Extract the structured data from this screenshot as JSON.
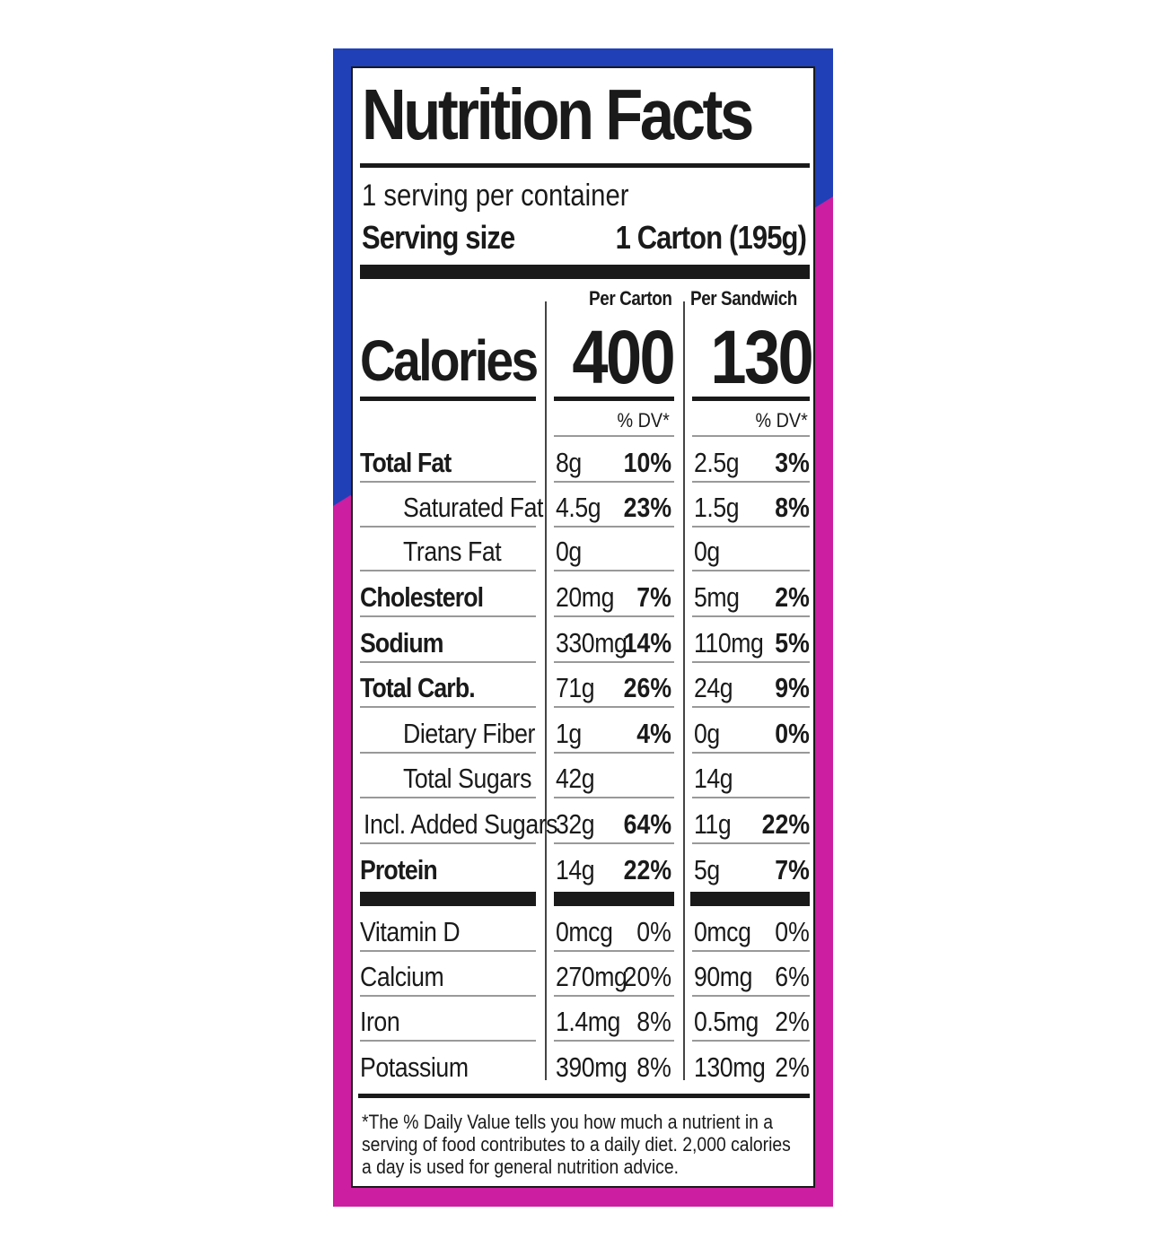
{
  "colors": {
    "blue": "#2040b8",
    "magenta": "#cc1ea0",
    "ink": "#1a1a1a"
  },
  "label": {
    "title": "Nutrition Facts",
    "servings_per_container": "1 serving per container",
    "serving_size_label": "Serving size",
    "serving_size_value": "1 Carton (195g)",
    "col1_header": "Per Carton",
    "col2_header": "Per Sandwich",
    "calories_label": "Calories",
    "calories_col1": "400",
    "calories_col2": "130",
    "dv_header": "% DV*",
    "nutrients": [
      {
        "name": "Total Fat",
        "bold": true,
        "indent": false,
        "c1_amt": "8g",
        "c1_dv": "10%",
        "c2_amt": "2.5g",
        "c2_dv": "3%"
      },
      {
        "name": "Saturated Fat",
        "bold": false,
        "indent": true,
        "c1_amt": "4.5g",
        "c1_dv": "23%",
        "c2_amt": "1.5g",
        "c2_dv": "8%"
      },
      {
        "name": "Trans Fat",
        "bold": false,
        "indent": true,
        "c1_amt": "0g",
        "c1_dv": "",
        "c2_amt": "0g",
        "c2_dv": ""
      },
      {
        "name": "Cholesterol",
        "bold": true,
        "indent": false,
        "c1_amt": "20mg",
        "c1_dv": "7%",
        "c2_amt": "5mg",
        "c2_dv": "2%"
      },
      {
        "name": "Sodium",
        "bold": true,
        "indent": false,
        "c1_amt": "330mg",
        "c1_dv": "14%",
        "c2_amt": "110mg",
        "c2_dv": "5%"
      },
      {
        "name": "Total Carb.",
        "bold": true,
        "indent": false,
        "c1_amt": "71g",
        "c1_dv": "26%",
        "c2_amt": "24g",
        "c2_dv": "9%"
      },
      {
        "name": "Dietary Fiber",
        "bold": false,
        "indent": true,
        "c1_amt": "1g",
        "c1_dv": "4%",
        "c2_amt": "0g",
        "c2_dv": "0%"
      },
      {
        "name": "Total Sugars",
        "bold": false,
        "indent": true,
        "c1_amt": "42g",
        "c1_dv": "",
        "c2_amt": "14g",
        "c2_dv": ""
      },
      {
        "name": "Incl. Added Sugars",
        "bold": false,
        "indent": false,
        "c1_amt": "32g",
        "c1_dv": "64%",
        "c2_amt": "11g",
        "c2_dv": "22%"
      },
      {
        "name": "Protein",
        "bold": true,
        "indent": false,
        "c1_amt": "14g",
        "c1_dv": "22%",
        "c2_amt": "5g",
        "c2_dv": "7%"
      }
    ],
    "vitamins": [
      {
        "name": "Vitamin D",
        "c1_amt": "0mcg",
        "c1_dv": "0%",
        "c2_amt": "0mcg",
        "c2_dv": "0%"
      },
      {
        "name": "Calcium",
        "c1_amt": "270mg",
        "c1_dv": "20%",
        "c2_amt": "90mg",
        "c2_dv": "6%"
      },
      {
        "name": "Iron",
        "c1_amt": "1.4mg",
        "c1_dv": "8%",
        "c2_amt": "0.5mg",
        "c2_dv": "2%"
      },
      {
        "name": "Potassium",
        "c1_amt": "390mg",
        "c1_dv": "8%",
        "c2_amt": "130mg",
        "c2_dv": "2%"
      }
    ],
    "footnote": "*The % Daily Value tells you how much a nutrient in a serving of food contributes to a daily diet. 2,000 calories a day is used for general nutrition advice."
  }
}
